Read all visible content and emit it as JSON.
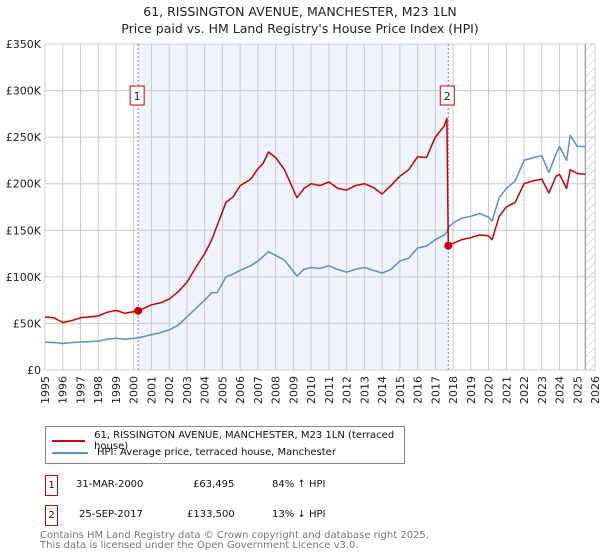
{
  "title_line1": "61, RISSINGTON AVENUE, MANCHESTER, M23 1LN",
  "title_line2": "Price paid vs. HM Land Registry's House Price Index (HPI)",
  "chart_data": {
    "type": "line",
    "title": "61, RISSINGTON AVENUE, MANCHESTER, M23 1LN — Price paid vs. HM Land Registry's House Price Index (HPI)",
    "xlim": [
      1995,
      2026
    ],
    "ylim": [
      0,
      350000
    ],
    "y_ticks": [
      0,
      50000,
      100000,
      150000,
      200000,
      250000,
      300000,
      350000
    ],
    "y_tick_labels": [
      "£0",
      "£50K",
      "£100K",
      "£150K",
      "£200K",
      "£250K",
      "£300K",
      "£350K"
    ],
    "x_ticks": [
      1995,
      1996,
      1997,
      1998,
      1999,
      2000,
      2001,
      2002,
      2003,
      2004,
      2005,
      2006,
      2007,
      2008,
      2009,
      2010,
      2011,
      2012,
      2013,
      2014,
      2015,
      2016,
      2017,
      2018,
      2019,
      2020,
      2021,
      2022,
      2023,
      2024,
      2025,
      2026
    ],
    "grid": true,
    "colors": {
      "property": "#cc0000",
      "hpi": "#5b8fd0",
      "shade": "#eef3fc",
      "marker_line": "#e06070"
    },
    "shaded_range": [
      2000.25,
      2017.73
    ],
    "hatched_from": 2025.45,
    "series": [
      {
        "name": "61, RISSINGTON AVENUE, MANCHESTER, M23 1LN (terraced house)",
        "color": "#cc0000",
        "x": [
          1995,
          1995.5,
          1996,
          1996.5,
          1997,
          1997.5,
          1998,
          1998.5,
          1999,
          1999.5,
          2000.25,
          2001,
          2001.5,
          2002,
          2002.5,
          2003,
          2003.5,
          2004,
          2004.4,
          2004.7,
          2005.2,
          2005.6,
          2006,
          2006.6,
          2007,
          2007.3,
          2007.6,
          2008,
          2008.5,
          2009.2,
          2009.6,
          2010,
          2010.5,
          2011,
          2011.5,
          2012,
          2012.5,
          2013,
          2013.5,
          2014,
          2014.5,
          2015,
          2015.5,
          2016,
          2016.5,
          2017,
          2017.5,
          2017.65,
          2017.73,
          2018,
          2018.5,
          2019,
          2019.5,
          2020,
          2020.2,
          2020.6,
          2021,
          2021.5,
          2022,
          2022.5,
          2023,
          2023.4,
          2023.8,
          2024,
          2024.4,
          2024.6,
          2025,
          2025.45
        ],
        "y": [
          57000,
          56000,
          51000,
          53000,
          56000,
          57000,
          58000,
          62000,
          64000,
          61000,
          63495,
          70000,
          72000,
          76000,
          84000,
          94000,
          110000,
          125000,
          140000,
          155000,
          180000,
          186000,
          198000,
          205000,
          216000,
          222000,
          234000,
          228000,
          215000,
          185000,
          195000,
          200000,
          198000,
          202000,
          195000,
          193000,
          198000,
          200000,
          196000,
          189000,
          198000,
          208000,
          215000,
          229000,
          228000,
          250000,
          262000,
          270000,
          133500,
          136000,
          140000,
          142000,
          145000,
          144000,
          140000,
          165000,
          175000,
          180000,
          200000,
          203000,
          205000,
          190000,
          208000,
          210000,
          195000,
          215000,
          211000,
          210000
        ]
      },
      {
        "name": "HPI: Average price, terraced house, Manchester",
        "color": "#5b8fd0",
        "x": [
          1995,
          1995.5,
          1996,
          1996.5,
          1997,
          1997.5,
          1998,
          1998.5,
          1999,
          1999.5,
          2000.25,
          2001,
          2001.5,
          2002,
          2002.5,
          2003,
          2003.5,
          2004,
          2004.4,
          2004.7,
          2005.2,
          2005.6,
          2006,
          2006.6,
          2007,
          2007.3,
          2007.6,
          2008,
          2008.5,
          2009.2,
          2009.6,
          2010,
          2010.5,
          2011,
          2011.5,
          2012,
          2012.5,
          2013,
          2013.5,
          2014,
          2014.5,
          2015,
          2015.5,
          2016,
          2016.5,
          2017,
          2017.5,
          2017.65,
          2017.73,
          2018,
          2018.5,
          2019,
          2019.5,
          2020,
          2020.2,
          2020.6,
          2021,
          2021.5,
          2022,
          2022.5,
          2023,
          2023.4,
          2023.8,
          2024,
          2024.4,
          2024.6,
          2025,
          2025.45
        ],
        "y": [
          30000,
          29500,
          28500,
          29500,
          30000,
          30500,
          31000,
          33000,
          34000,
          33000,
          34500,
          38000,
          40000,
          43000,
          48000,
          57000,
          66000,
          75000,
          83000,
          83000,
          100000,
          103000,
          107000,
          112000,
          117000,
          122000,
          127000,
          123000,
          118000,
          101000,
          108000,
          110000,
          109000,
          112000,
          108000,
          105000,
          108000,
          110000,
          107000,
          104000,
          108000,
          117000,
          120000,
          131000,
          133000,
          140000,
          145000,
          148000,
          153000,
          158000,
          163000,
          165000,
          168000,
          164000,
          160000,
          185000,
          195000,
          203000,
          225000,
          228000,
          230000,
          212000,
          232000,
          240000,
          225000,
          252000,
          240000,
          240000
        ]
      }
    ],
    "sales": [
      {
        "label": "1",
        "x": 2000.25,
        "y": 63495
      },
      {
        "label": "2",
        "x": 2017.73,
        "y": 133500
      }
    ]
  },
  "legend": {
    "property": "61, RISSINGTON AVENUE, MANCHESTER, M23 1LN (terraced house)",
    "hpi": "HPI: Average price, terraced house, Manchester"
  },
  "transactions": [
    {
      "num": "1",
      "date": "31-MAR-2000",
      "price": "£63,495",
      "hpi": "84% ↑ HPI"
    },
    {
      "num": "2",
      "date": "25-SEP-2017",
      "price": "£133,500",
      "hpi": "13% ↓ HPI"
    }
  ],
  "footer_line1": "Contains HM Land Registry data © Crown copyright and database right 2025.",
  "footer_line2": "This data is licensed under the Open Government Licence v3.0."
}
